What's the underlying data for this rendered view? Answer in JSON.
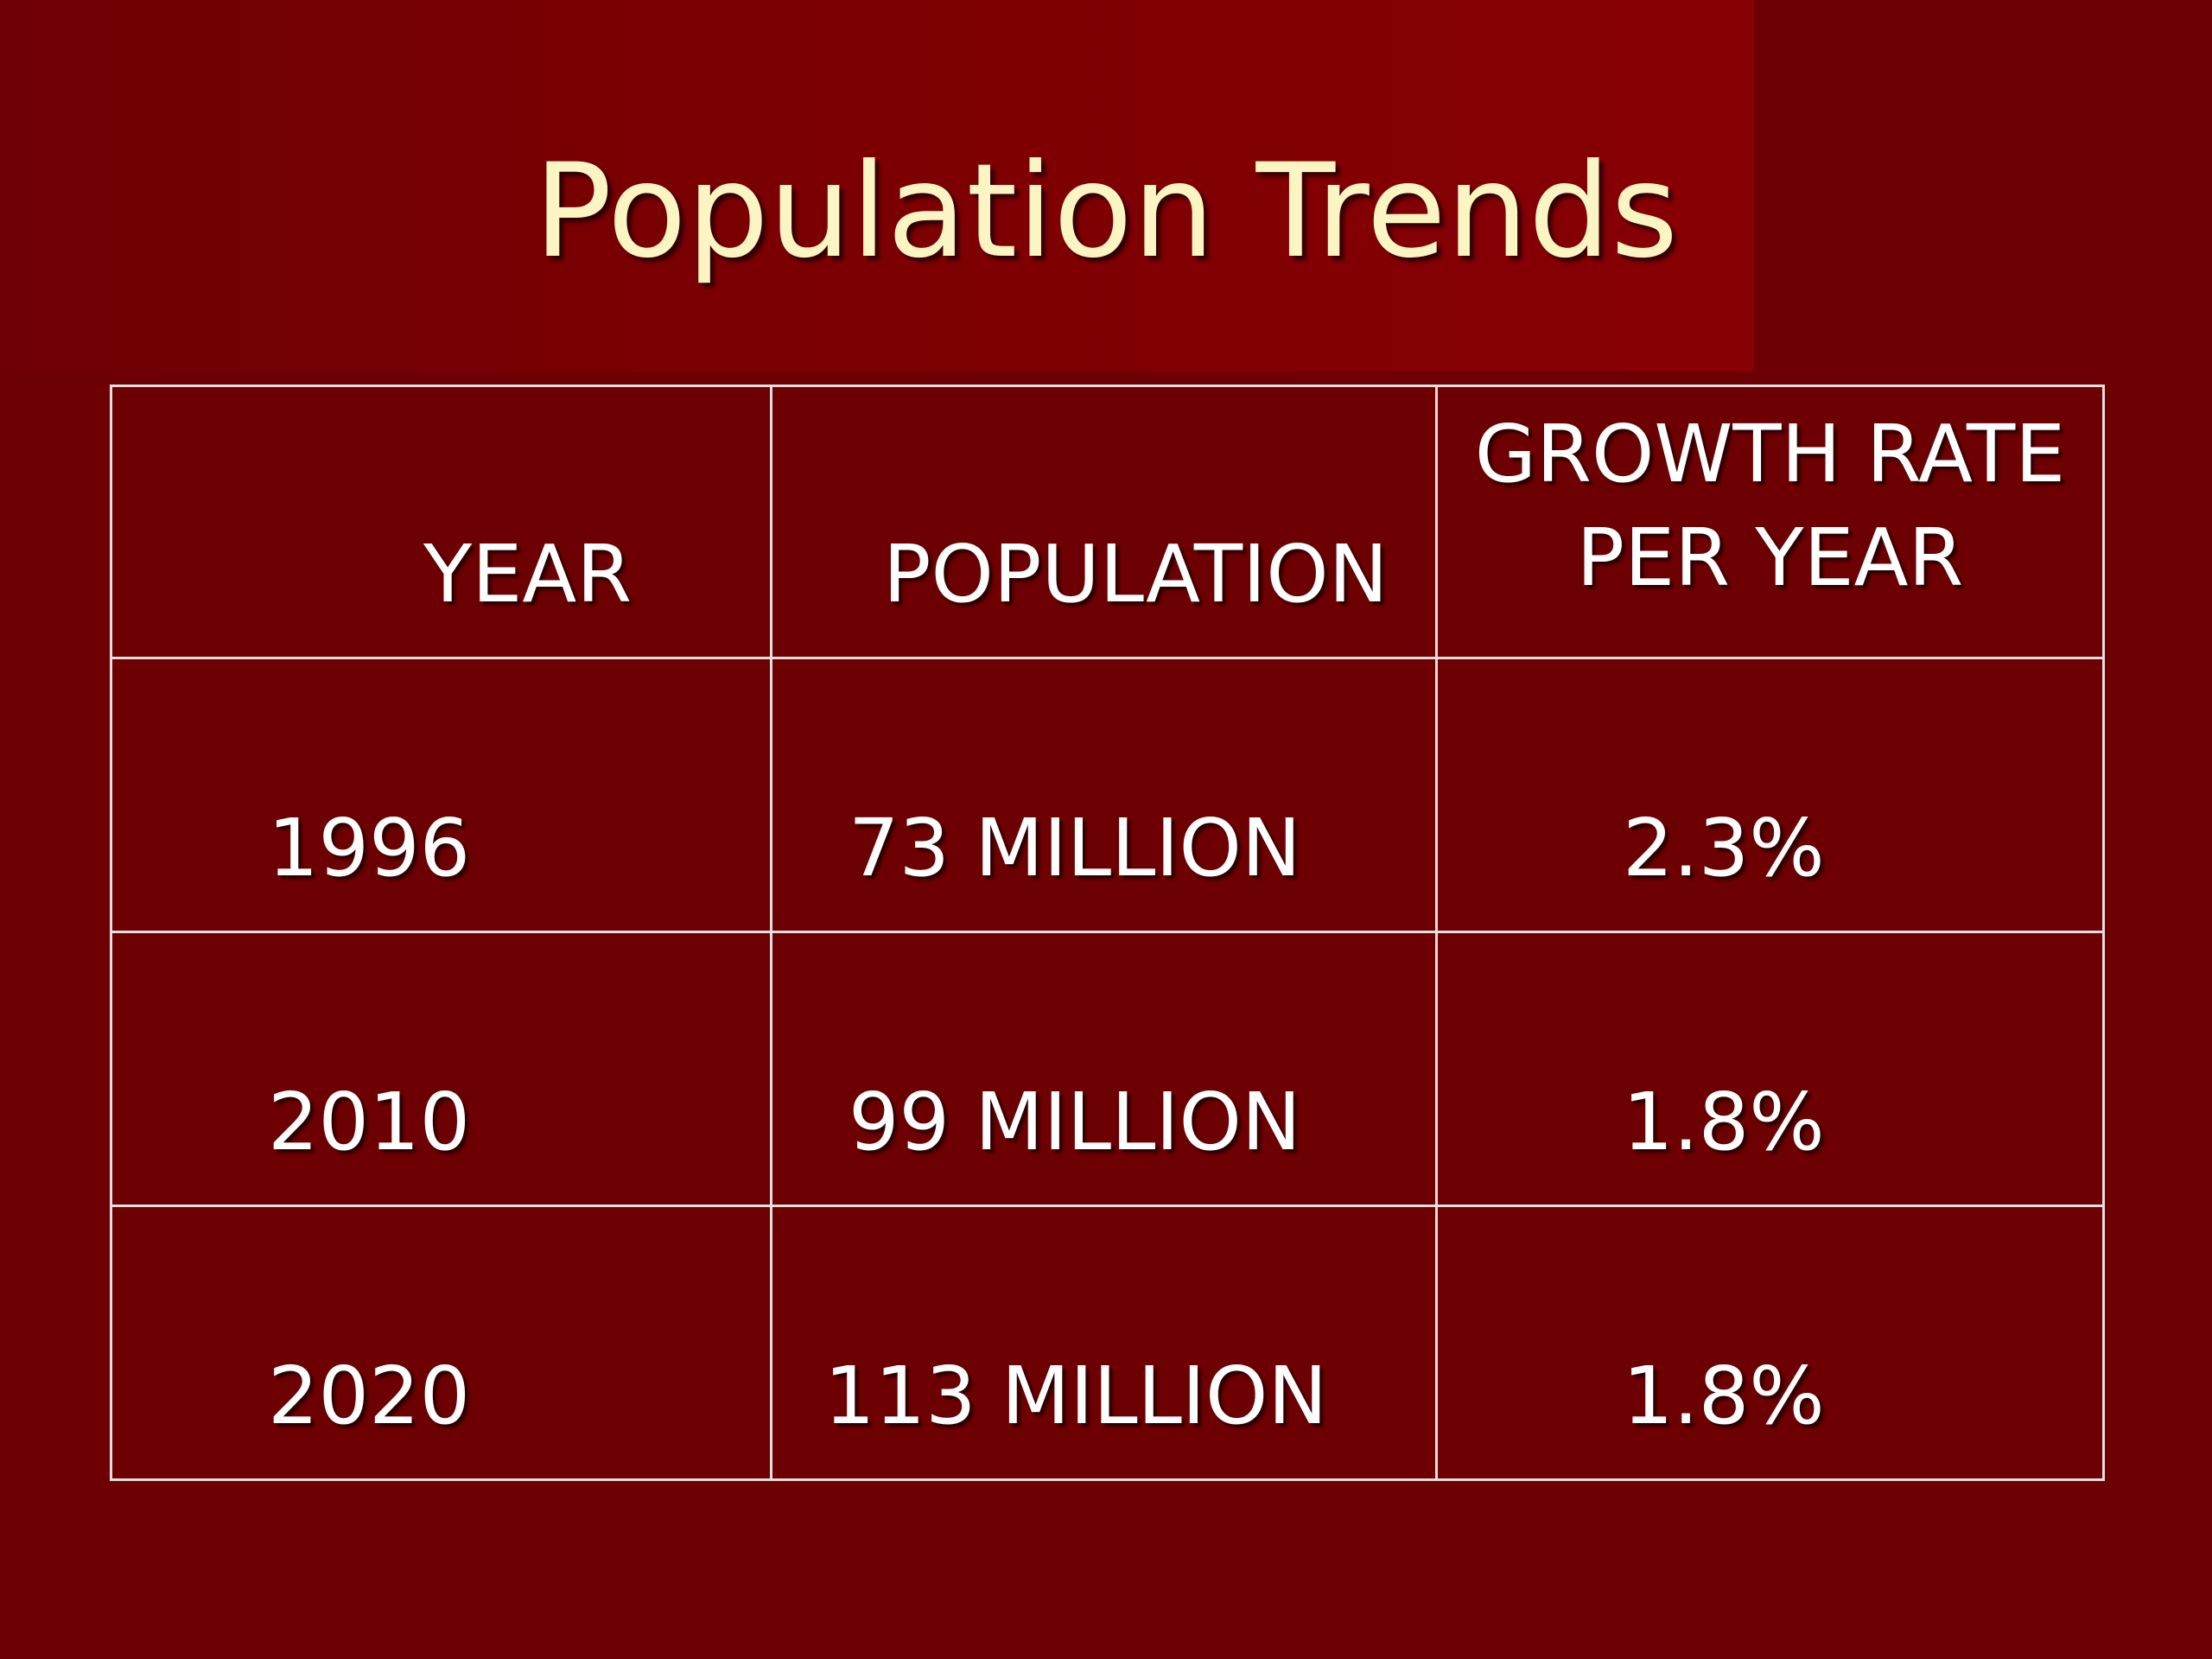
{
  "slide": {
    "title": "Population Trends",
    "background_color": "#6d0002",
    "title_color": "#fbf5c3"
  },
  "table": {
    "headers": {
      "year": "YEAR",
      "population": "POPULATION",
      "growth_line1": "GROWTH RATE",
      "growth_line2": "PER YEAR"
    },
    "rows": [
      {
        "year": "1996",
        "population": "73 MILLION",
        "growth": "2.3%"
      },
      {
        "year": "2010",
        "population": "99 MILLION",
        "growth": "1.8%"
      },
      {
        "year": "2020",
        "population": "113 MILLION",
        "growth": "1.8%"
      }
    ]
  }
}
